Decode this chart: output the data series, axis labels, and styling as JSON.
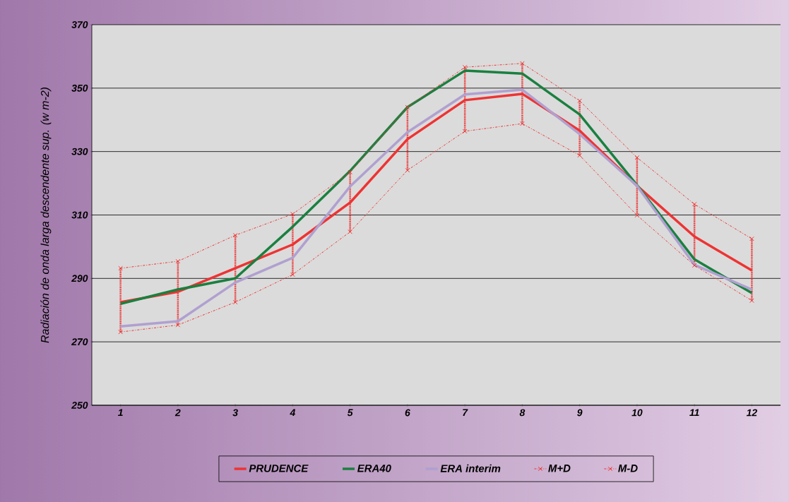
{
  "chart_data": {
    "type": "line",
    "ylabel": "Radiación de onda larga descendente sup. (w m-2)",
    "categories": [
      "1",
      "2",
      "3",
      "4",
      "5",
      "6",
      "7",
      "8",
      "9",
      "10",
      "11",
      "12"
    ],
    "ylim": [
      250,
      370
    ],
    "yticks": [
      250,
      270,
      290,
      310,
      330,
      350,
      370
    ],
    "grid": "y",
    "legend": "bottom",
    "series": [
      {
        "name": "PRUDENCE",
        "color": "#ee3333",
        "line_style": "solid",
        "values": [
          282.5,
          285.8,
          293.2,
          300.7,
          313.9,
          333.9,
          346.2,
          348.2,
          336.6,
          319.2,
          303.2,
          292.5
        ],
        "errors": [
          [
            273.1,
            293.2
          ],
          [
            275.3,
            295.4
          ],
          [
            282.5,
            303.6
          ],
          [
            291.2,
            310.3
          ],
          [
            304.7,
            323.5
          ],
          [
            324.1,
            344.0
          ],
          [
            336.4,
            356.6
          ],
          [
            338.8,
            357.8
          ],
          [
            328.8,
            346.0
          ],
          [
            309.9,
            328.1
          ],
          [
            294.1,
            313.4
          ],
          [
            283.0,
            302.5
          ]
        ]
      },
      {
        "name": "ERA40",
        "color": "#1a8040",
        "line_style": "solid",
        "values": [
          282.0,
          286.5,
          290.0,
          306.3,
          323.9,
          344.0,
          355.5,
          354.6,
          341.7,
          319.4,
          296.0,
          285.4
        ]
      },
      {
        "name": "ERA interim",
        "color": "#b0a0d0",
        "line_style": "solid",
        "values": [
          274.9,
          276.5,
          288.7,
          296.5,
          319.0,
          336.1,
          348.0,
          349.5,
          335.5,
          319.2,
          294.3,
          286.5
        ]
      },
      {
        "name": "M+D",
        "color": "#ee3333",
        "line_style": "dashed",
        "marker": "cross",
        "values": [
          293.2,
          295.4,
          303.6,
          310.3,
          323.5,
          344.0,
          356.6,
          357.8,
          346.0,
          328.1,
          313.4,
          302.5
        ]
      },
      {
        "name": "M-D",
        "color": "#ee3333",
        "line_style": "dashed",
        "marker": "cross",
        "values": [
          273.1,
          275.3,
          282.5,
          291.2,
          304.7,
          324.1,
          336.4,
          338.8,
          328.8,
          309.9,
          294.1,
          283.0
        ]
      }
    ]
  }
}
